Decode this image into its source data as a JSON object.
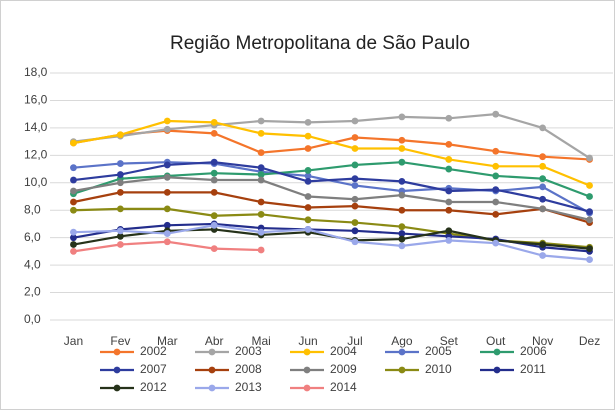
{
  "chart_data": {
    "type": "line",
    "title": "Região Metropolitana de São Paulo",
    "categories": [
      "Jan",
      "Fev",
      "Mar",
      "Abr",
      "Mai",
      "Jun",
      "Jul",
      "Ago",
      "Set",
      "Out",
      "Nov",
      "Dez"
    ],
    "ylim": [
      0,
      18
    ],
    "yticks": [
      {
        "value": 0,
        "label": "0,0"
      },
      {
        "value": 2,
        "label": "2,0"
      },
      {
        "value": 4,
        "label": "4,0"
      },
      {
        "value": 6,
        "label": "6,0"
      },
      {
        "value": 8,
        "label": "8,0"
      },
      {
        "value": 10,
        "label": "10,0"
      },
      {
        "value": 12,
        "label": "12,0"
      },
      {
        "value": 14,
        "label": "14,0"
      },
      {
        "value": 16,
        "label": "16,0"
      },
      {
        "value": 18,
        "label": "18,0"
      }
    ],
    "grid": true,
    "series": [
      {
        "name": "2002",
        "color": "#f4752b",
        "values": [
          12.9,
          13.5,
          13.8,
          13.6,
          12.2,
          12.5,
          13.3,
          13.1,
          12.8,
          12.3,
          11.9,
          11.7
        ]
      },
      {
        "name": "2003",
        "color": "#a5a5a5",
        "values": [
          13.0,
          13.4,
          13.9,
          14.2,
          14.5,
          14.4,
          14.5,
          14.8,
          14.7,
          15.0,
          14.0,
          11.8
        ]
      },
      {
        "name": "2004",
        "color": "#ffc000",
        "values": [
          12.9,
          13.5,
          14.5,
          14.4,
          13.6,
          13.4,
          12.5,
          12.5,
          11.7,
          11.2,
          11.2,
          9.8
        ]
      },
      {
        "name": "2005",
        "color": "#5b73c8",
        "values": [
          11.1,
          11.4,
          11.5,
          11.4,
          10.8,
          10.5,
          9.8,
          9.4,
          9.6,
          9.4,
          9.7,
          7.8
        ]
      },
      {
        "name": "2006",
        "color": "#2e9b6e",
        "values": [
          9.2,
          10.3,
          10.5,
          10.7,
          10.6,
          10.9,
          11.3,
          11.5,
          11.0,
          10.5,
          10.3,
          9.0
        ]
      },
      {
        "name": "2007",
        "color": "#2e3c9e",
        "values": [
          10.2,
          10.6,
          11.3,
          11.5,
          11.1,
          10.1,
          10.3,
          10.1,
          9.4,
          9.5,
          8.8,
          7.9
        ]
      },
      {
        "name": "2008",
        "color": "#a6400e",
        "values": [
          8.6,
          9.3,
          9.3,
          9.3,
          8.6,
          8.2,
          8.3,
          8.0,
          8.0,
          7.7,
          8.1,
          7.1
        ]
      },
      {
        "name": "2009",
        "color": "#7f7f7f",
        "values": [
          9.4,
          10.0,
          10.4,
          10.2,
          10.2,
          9.0,
          8.8,
          9.1,
          8.6,
          8.6,
          8.1,
          7.3
        ]
      },
      {
        "name": "2010",
        "color": "#8a8a14",
        "values": [
          8.0,
          8.1,
          8.1,
          7.6,
          7.7,
          7.3,
          7.1,
          6.8,
          6.3,
          5.8,
          5.6,
          5.3
        ]
      },
      {
        "name": "2011",
        "color": "#232d8c",
        "values": [
          6.0,
          6.6,
          6.9,
          7.0,
          6.7,
          6.6,
          6.5,
          6.3,
          6.1,
          5.9,
          5.3,
          5.0
        ]
      },
      {
        "name": "2012",
        "color": "#26321a",
        "values": [
          5.5,
          6.1,
          6.5,
          6.6,
          6.2,
          6.4,
          5.8,
          5.9,
          6.5,
          5.8,
          5.5,
          5.2
        ]
      },
      {
        "name": "2013",
        "color": "#9aa8ea",
        "values": [
          6.4,
          6.5,
          6.3,
          6.9,
          6.4,
          6.6,
          5.7,
          5.4,
          5.8,
          5.6,
          4.7,
          4.4
        ]
      },
      {
        "name": "2014",
        "color": "#f08080",
        "values": [
          5.0,
          5.5,
          5.7,
          5.2,
          5.1,
          null,
          null,
          null,
          null,
          null,
          null,
          null
        ]
      }
    ]
  }
}
